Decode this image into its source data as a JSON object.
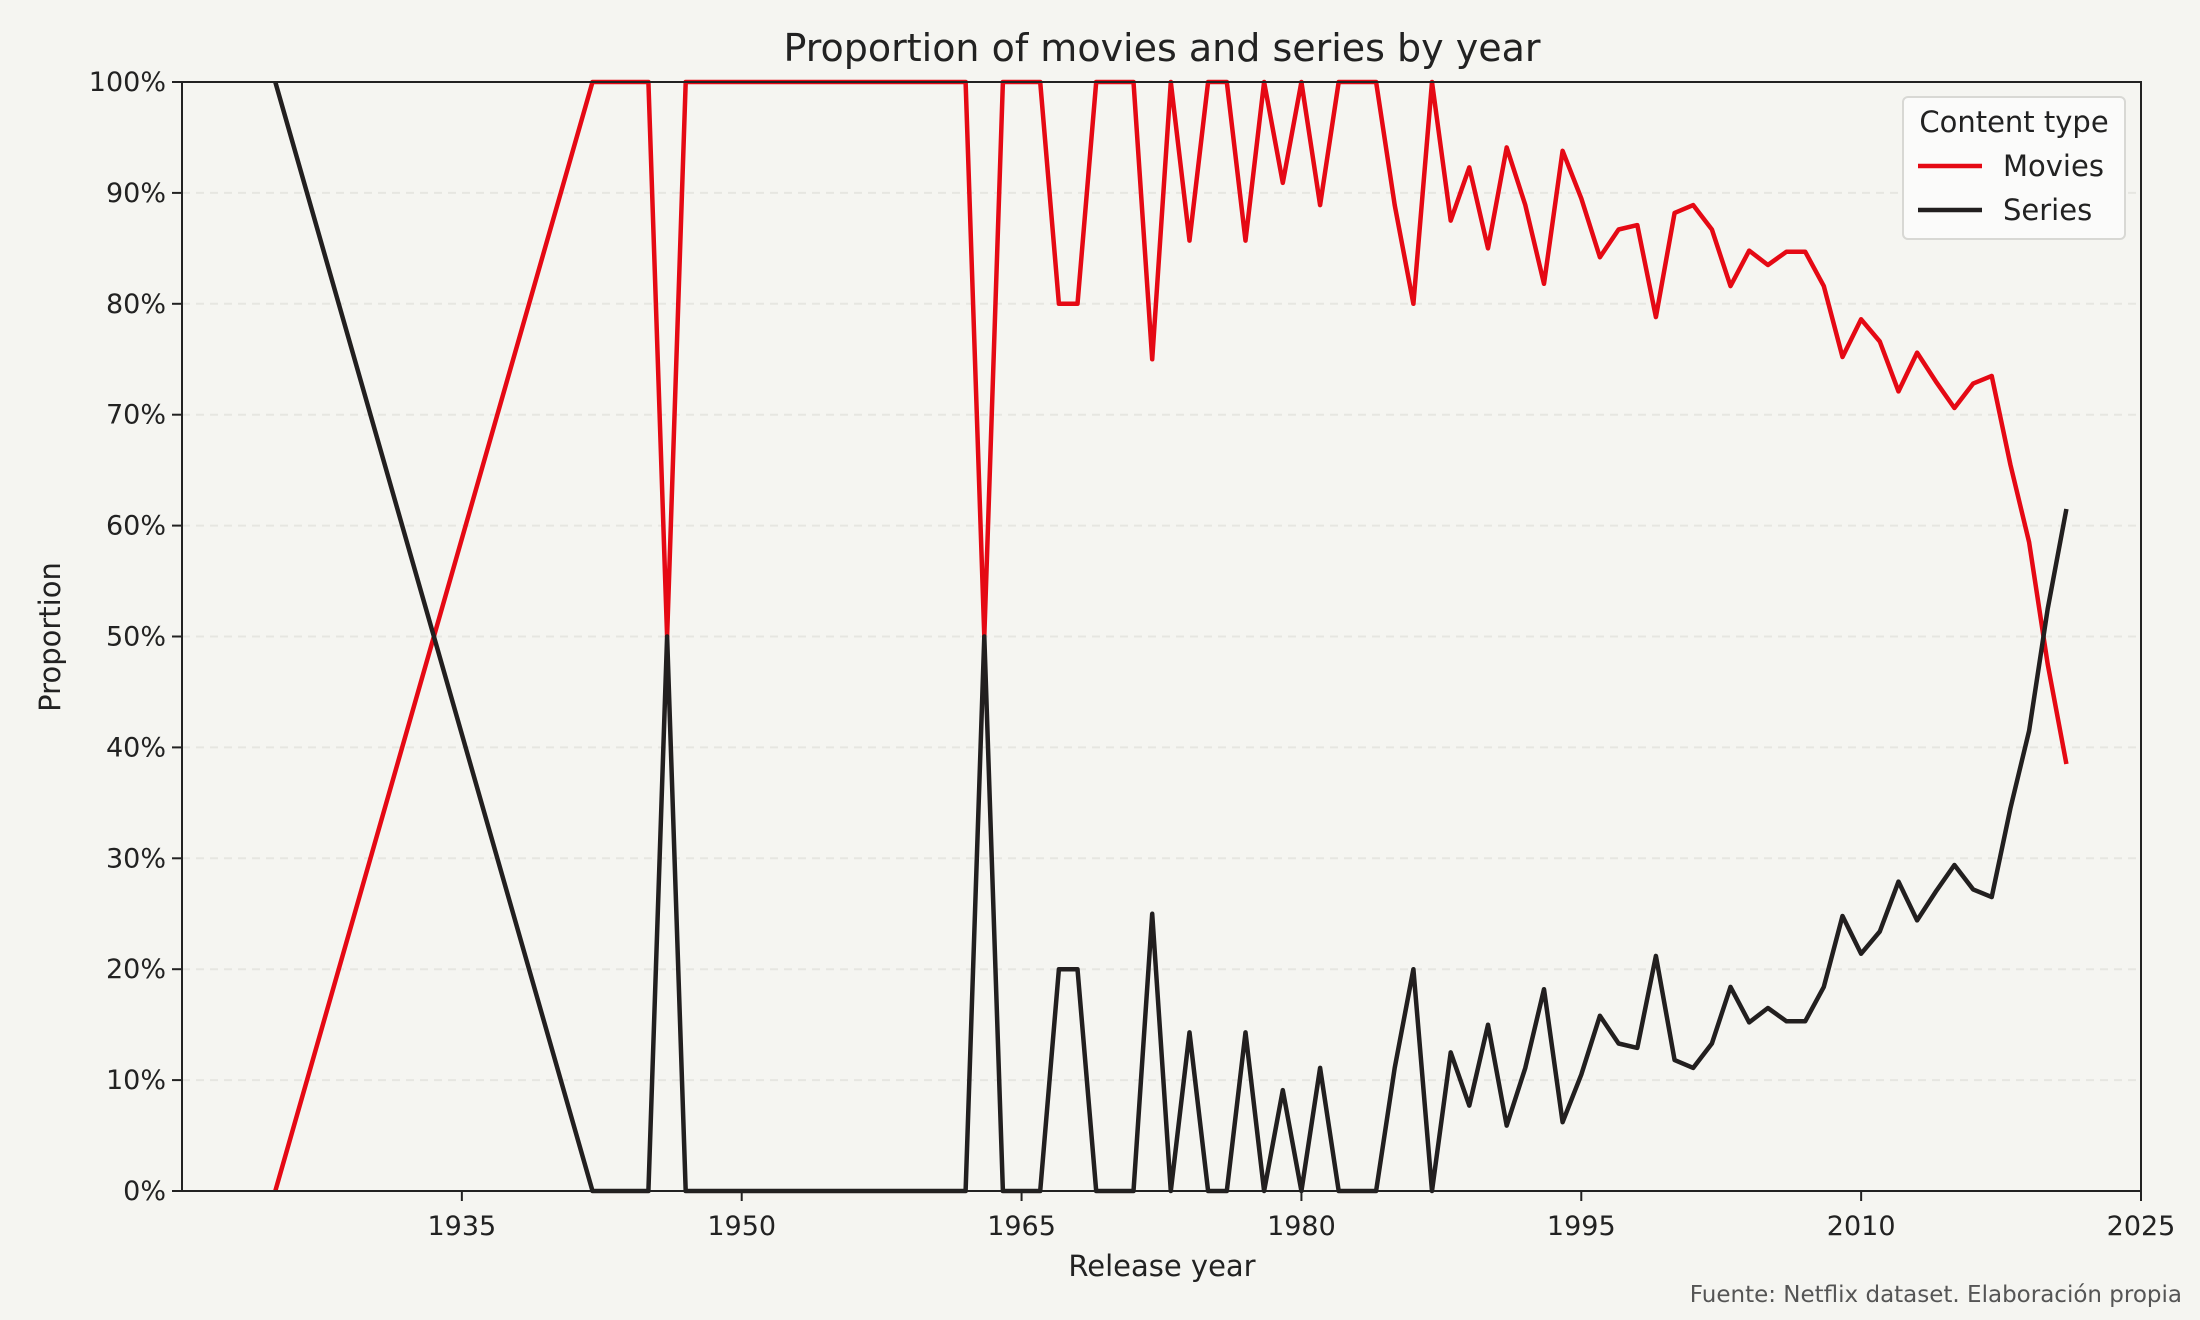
{
  "chart_data": {
    "type": "line",
    "title": "Proportion of movies and series by year",
    "xlabel": "Release year",
    "ylabel": "Proportion",
    "xlim": [
      1920,
      2025
    ],
    "ylim": [
      0,
      1
    ],
    "x_ticks": [
      1935,
      1950,
      1965,
      1980,
      1995,
      2010,
      2025
    ],
    "x_tick_labels": [
      "1935",
      "1950",
      "1965",
      "1980",
      "1995",
      "2010",
      "2025"
    ],
    "y_ticks": [
      0,
      0.1,
      0.2,
      0.3,
      0.4,
      0.5,
      0.6,
      0.7,
      0.8,
      0.9,
      1.0
    ],
    "y_tick_labels": [
      "0%",
      "10%",
      "20%",
      "30%",
      "40%",
      "50%",
      "60%",
      "70%",
      "80%",
      "90%",
      "100%"
    ],
    "grid": "horizontal dashed",
    "legend": {
      "title": "Content type",
      "position": "top-right"
    },
    "colors": {
      "Movies": "#e50914",
      "Series": "#221f1f"
    },
    "source_note": "Fuente: Netflix dataset. Elaboración propia",
    "series": [
      {
        "name": "Movies",
        "points": [
          [
            1925,
            0.0
          ],
          [
            1942,
            1.0
          ],
          [
            1944,
            1.0
          ],
          [
            1945,
            1.0
          ],
          [
            1946,
            0.5
          ],
          [
            1947,
            1.0
          ],
          [
            1955,
            1.0
          ],
          [
            1962,
            1.0
          ],
          [
            1963,
            0.5
          ],
          [
            1964,
            1.0
          ],
          [
            1965,
            1.0
          ],
          [
            1966,
            1.0
          ],
          [
            1967,
            0.8
          ],
          [
            1968,
            0.8
          ],
          [
            1969,
            1.0
          ],
          [
            1970,
            1.0
          ],
          [
            1971,
            1.0
          ],
          [
            1972,
            0.75
          ],
          [
            1973,
            1.0
          ],
          [
            1974,
            0.857
          ],
          [
            1975,
            1.0
          ],
          [
            1976,
            1.0
          ],
          [
            1977,
            0.857
          ],
          [
            1978,
            1.0
          ],
          [
            1979,
            0.909
          ],
          [
            1980,
            1.0
          ],
          [
            1981,
            0.889
          ],
          [
            1982,
            1.0
          ],
          [
            1983,
            1.0
          ],
          [
            1984,
            1.0
          ],
          [
            1985,
            0.889
          ],
          [
            1986,
            0.8
          ],
          [
            1987,
            1.0
          ],
          [
            1988,
            0.875
          ],
          [
            1989,
            0.923
          ],
          [
            1990,
            0.85
          ],
          [
            1991,
            0.941
          ],
          [
            1992,
            0.889
          ],
          [
            1993,
            0.818
          ],
          [
            1994,
            0.938
          ],
          [
            1995,
            0.895
          ],
          [
            1996,
            0.842
          ],
          [
            1997,
            0.867
          ],
          [
            1998,
            0.871
          ],
          [
            1999,
            0.788
          ],
          [
            2000,
            0.882
          ],
          [
            2001,
            0.889
          ],
          [
            2002,
            0.867
          ],
          [
            2003,
            0.816
          ],
          [
            2004,
            0.848
          ],
          [
            2005,
            0.835
          ],
          [
            2006,
            0.847
          ],
          [
            2007,
            0.847
          ],
          [
            2008,
            0.816
          ],
          [
            2009,
            0.752
          ],
          [
            2010,
            0.786
          ],
          [
            2011,
            0.766
          ],
          [
            2012,
            0.721
          ],
          [
            2013,
            0.756
          ],
          [
            2014,
            0.73
          ],
          [
            2015,
            0.706
          ],
          [
            2016,
            0.728
          ],
          [
            2017,
            0.735
          ],
          [
            2018,
            0.655
          ],
          [
            2019,
            0.585
          ],
          [
            2020,
            0.475
          ],
          [
            2021,
            0.385
          ]
        ]
      },
      {
        "name": "Series",
        "points": [
          [
            1925,
            1.0
          ],
          [
            1942,
            0.0
          ],
          [
            1944,
            0.0
          ],
          [
            1945,
            0.0
          ],
          [
            1946,
            0.5
          ],
          [
            1947,
            0.0
          ],
          [
            1955,
            0.0
          ],
          [
            1962,
            0.0
          ],
          [
            1963,
            0.5
          ],
          [
            1964,
            0.0
          ],
          [
            1965,
            0.0
          ],
          [
            1966,
            0.0
          ],
          [
            1967,
            0.2
          ],
          [
            1968,
            0.2
          ],
          [
            1969,
            0.0
          ],
          [
            1970,
            0.0
          ],
          [
            1971,
            0.0
          ],
          [
            1972,
            0.25
          ],
          [
            1973,
            0.0
          ],
          [
            1974,
            0.143
          ],
          [
            1975,
            0.0
          ],
          [
            1976,
            0.0
          ],
          [
            1977,
            0.143
          ],
          [
            1978,
            0.0
          ],
          [
            1979,
            0.091
          ],
          [
            1980,
            0.0
          ],
          [
            1981,
            0.111
          ],
          [
            1982,
            0.0
          ],
          [
            1983,
            0.0
          ],
          [
            1984,
            0.0
          ],
          [
            1985,
            0.111
          ],
          [
            1986,
            0.2
          ],
          [
            1987,
            0.0
          ],
          [
            1988,
            0.125
          ],
          [
            1989,
            0.077
          ],
          [
            1990,
            0.15
          ],
          [
            1991,
            0.059
          ],
          [
            1992,
            0.111
          ],
          [
            1993,
            0.182
          ],
          [
            1994,
            0.062
          ],
          [
            1995,
            0.105
          ],
          [
            1996,
            0.158
          ],
          [
            1997,
            0.133
          ],
          [
            1998,
            0.129
          ],
          [
            1999,
            0.212
          ],
          [
            2000,
            0.118
          ],
          [
            2001,
            0.111
          ],
          [
            2002,
            0.133
          ],
          [
            2003,
            0.184
          ],
          [
            2004,
            0.152
          ],
          [
            2005,
            0.165
          ],
          [
            2006,
            0.153
          ],
          [
            2007,
            0.153
          ],
          [
            2008,
            0.184
          ],
          [
            2009,
            0.248
          ],
          [
            2010,
            0.214
          ],
          [
            2011,
            0.234
          ],
          [
            2012,
            0.279
          ],
          [
            2013,
            0.244
          ],
          [
            2014,
            0.27
          ],
          [
            2015,
            0.294
          ],
          [
            2016,
            0.272
          ],
          [
            2017,
            0.265
          ],
          [
            2018,
            0.345
          ],
          [
            2019,
            0.415
          ],
          [
            2020,
            0.525
          ],
          [
            2021,
            0.615
          ]
        ]
      }
    ]
  }
}
